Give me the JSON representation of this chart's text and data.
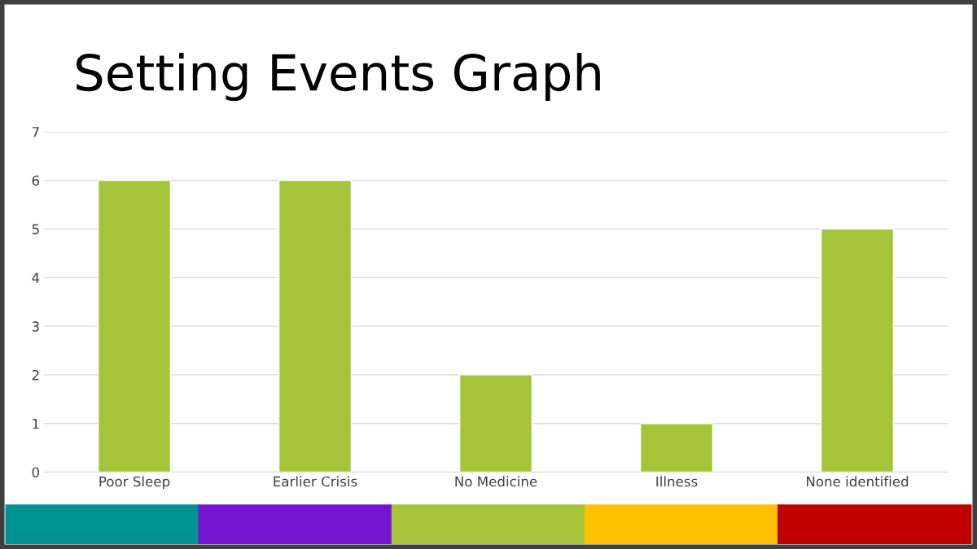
{
  "chart_data": {
    "type": "bar",
    "title": "Setting Events Graph",
    "categories": [
      "Poor Sleep",
      "Earlier Crisis",
      "No Medicine",
      "Illness",
      "None identified"
    ],
    "values": [
      6,
      6,
      2,
      1,
      5
    ],
    "color": "#a6c43a",
    "ylim": [
      0,
      7
    ],
    "yticks": [
      0,
      1,
      2,
      3,
      4,
      5,
      6,
      7
    ],
    "grid": "y",
    "legend": false
  }
}
